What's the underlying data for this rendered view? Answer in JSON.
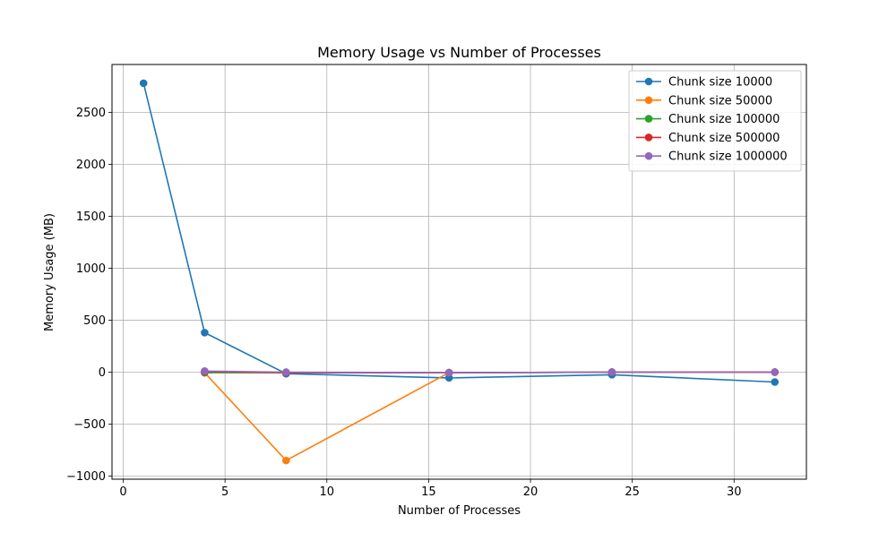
{
  "chart_data": {
    "type": "line",
    "title": "Memory Usage vs Number of Processes",
    "xlabel": "Number of Processes",
    "ylabel": "Memory Usage (MB)",
    "xlim": [
      -0.55,
      33.55
    ],
    "ylim": [
      -1030,
      2960
    ],
    "xticks": [
      0,
      5,
      10,
      15,
      20,
      25,
      30
    ],
    "yticks": [
      -1000,
      -500,
      0,
      500,
      1000,
      1500,
      2000,
      2500
    ],
    "grid": true,
    "legend_position": "top-right",
    "series": [
      {
        "name": "Chunk size 10000",
        "color": "#1f77b4",
        "x": [
          1,
          4,
          8,
          16,
          24,
          32
        ],
        "y": [
          2780,
          380,
          -15,
          -55,
          -25,
          -95
        ]
      },
      {
        "name": "Chunk size 50000",
        "color": "#ff7f0e",
        "x": [
          4,
          8,
          16,
          24,
          32
        ],
        "y": [
          -5,
          -850,
          -5,
          0,
          0
        ]
      },
      {
        "name": "Chunk size 100000",
        "color": "#2ca02c",
        "x": [
          4,
          8,
          16,
          24,
          32
        ],
        "y": [
          -5,
          -5,
          -5,
          0,
          0
        ]
      },
      {
        "name": "Chunk size 500000",
        "color": "#d62728",
        "x": [
          4,
          8,
          16,
          24,
          32
        ],
        "y": [
          5,
          -5,
          -5,
          0,
          0
        ]
      },
      {
        "name": "Chunk size 1000000",
        "color": "#9467bd",
        "x": [
          4,
          8,
          16,
          24,
          32
        ],
        "y": [
          10,
          0,
          -5,
          0,
          0
        ]
      }
    ]
  }
}
